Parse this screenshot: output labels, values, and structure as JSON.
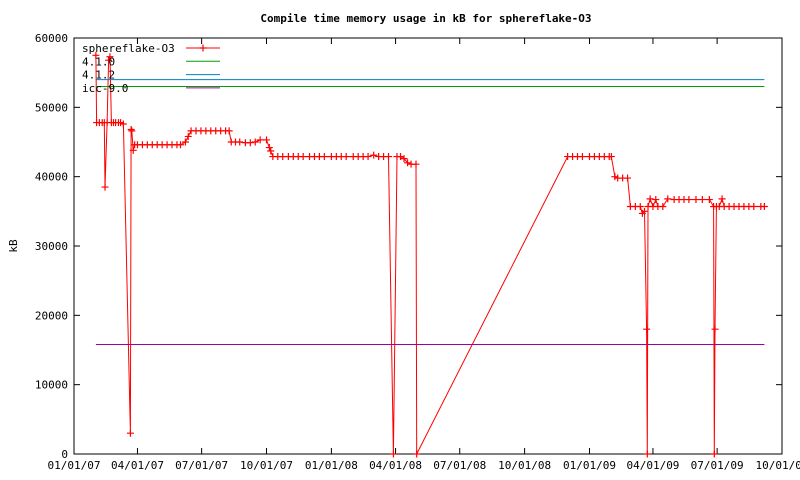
{
  "chart_data": {
    "type": "line",
    "title": "Compile time memory usage in kB for sphereflake-O3",
    "xlabel": "",
    "ylabel": "kB",
    "xlim": [
      "2007-01-01",
      "2009-10-01"
    ],
    "ylim": [
      0,
      60000
    ],
    "xticks": [
      "01/01/07",
      "04/01/07",
      "07/01/07",
      "10/01/07",
      "01/01/08",
      "04/01/08",
      "07/01/08",
      "10/01/08",
      "01/01/09",
      "04/01/09",
      "07/01/09",
      "10/01/09"
    ],
    "yticks": [
      "0",
      "10000",
      "20000",
      "30000",
      "40000",
      "50000",
      "60000"
    ],
    "grid": false,
    "legend_position": "top-left",
    "series": [
      {
        "name": "sphereflake-O3",
        "color": "#ff0000",
        "markers": true,
        "points": [
          [
            "2007-02-01",
            57500
          ],
          [
            "2007-02-02",
            47800
          ],
          [
            "2007-02-06",
            47800
          ],
          [
            "2007-02-10",
            47800
          ],
          [
            "2007-02-13",
            47800
          ],
          [
            "2007-02-14",
            38500
          ],
          [
            "2007-02-17",
            47800
          ],
          [
            "2007-02-19",
            56800
          ],
          [
            "2007-02-21",
            57300
          ],
          [
            "2007-02-23",
            47800
          ],
          [
            "2007-02-26",
            47800
          ],
          [
            "2007-03-01",
            47800
          ],
          [
            "2007-03-05",
            47800
          ],
          [
            "2007-03-08",
            47800
          ],
          [
            "2007-03-12",
            47600
          ],
          [
            "2007-03-22",
            3000
          ],
          [
            "2007-03-23",
            46800
          ],
          [
            "2007-03-24",
            46600
          ],
          [
            "2007-03-26",
            43800
          ],
          [
            "2007-03-28",
            44600
          ],
          [
            "2007-04-01",
            44600
          ],
          [
            "2007-04-08",
            44600
          ],
          [
            "2007-04-15",
            44600
          ],
          [
            "2007-04-22",
            44600
          ],
          [
            "2007-04-29",
            44600
          ],
          [
            "2007-05-06",
            44600
          ],
          [
            "2007-05-13",
            44600
          ],
          [
            "2007-05-20",
            44600
          ],
          [
            "2007-05-27",
            44600
          ],
          [
            "2007-06-01",
            44600
          ],
          [
            "2007-06-08",
            45000
          ],
          [
            "2007-06-12",
            45800
          ],
          [
            "2007-06-16",
            46600
          ],
          [
            "2007-06-23",
            46600
          ],
          [
            "2007-06-30",
            46600
          ],
          [
            "2007-07-07",
            46600
          ],
          [
            "2007-07-14",
            46600
          ],
          [
            "2007-07-21",
            46600
          ],
          [
            "2007-07-28",
            46600
          ],
          [
            "2007-08-04",
            46600
          ],
          [
            "2007-08-09",
            46600
          ],
          [
            "2007-08-12",
            45000
          ],
          [
            "2007-08-18",
            45000
          ],
          [
            "2007-08-24",
            45000
          ],
          [
            "2007-09-01",
            44900
          ],
          [
            "2007-09-08",
            44900
          ],
          [
            "2007-09-15",
            45000
          ],
          [
            "2007-09-22",
            45300
          ],
          [
            "2007-10-01",
            45300
          ],
          [
            "2007-10-05",
            44200
          ],
          [
            "2007-10-07",
            43700
          ],
          [
            "2007-10-10",
            42900
          ],
          [
            "2007-10-17",
            42900
          ],
          [
            "2007-10-24",
            42900
          ],
          [
            "2007-11-01",
            42900
          ],
          [
            "2007-11-08",
            42900
          ],
          [
            "2007-11-15",
            42900
          ],
          [
            "2007-11-22",
            42900
          ],
          [
            "2007-12-01",
            42900
          ],
          [
            "2007-12-08",
            42900
          ],
          [
            "2007-12-15",
            42900
          ],
          [
            "2007-12-22",
            42900
          ],
          [
            "2008-01-01",
            42900
          ],
          [
            "2008-01-08",
            42900
          ],
          [
            "2008-01-15",
            42900
          ],
          [
            "2008-01-22",
            42900
          ],
          [
            "2008-02-01",
            42900
          ],
          [
            "2008-02-08",
            42900
          ],
          [
            "2008-02-15",
            42900
          ],
          [
            "2008-02-22",
            42900
          ],
          [
            "2008-03-01",
            43100
          ],
          [
            "2008-03-08",
            42900
          ],
          [
            "2008-03-15",
            42900
          ],
          [
            "2008-03-22",
            42900
          ],
          [
            "2008-03-29",
            0
          ],
          [
            "2008-04-03",
            42900
          ],
          [
            "2008-04-08",
            42900
          ],
          [
            "2008-04-13",
            42600
          ],
          [
            "2008-04-18",
            42000
          ],
          [
            "2008-04-23",
            41800
          ],
          [
            "2008-04-30",
            41800
          ],
          [
            "2008-05-01",
            0
          ],
          [
            "2008-12-01",
            42900
          ],
          [
            "2008-12-08",
            42900
          ],
          [
            "2008-12-15",
            42900
          ],
          [
            "2008-12-22",
            42900
          ],
          [
            "2009-01-01",
            42900
          ],
          [
            "2009-01-08",
            42900
          ],
          [
            "2009-01-15",
            42900
          ],
          [
            "2009-01-22",
            42900
          ],
          [
            "2009-01-29",
            42900
          ],
          [
            "2009-02-01",
            42900
          ],
          [
            "2009-02-06",
            40000
          ],
          [
            "2009-02-10",
            39800
          ],
          [
            "2009-02-17",
            39800
          ],
          [
            "2009-02-24",
            39800
          ],
          [
            "2009-02-28",
            35700
          ],
          [
            "2009-03-07",
            35700
          ],
          [
            "2009-03-14",
            35700
          ],
          [
            "2009-03-17",
            34700
          ],
          [
            "2009-03-20",
            35000
          ],
          [
            "2009-03-23",
            18000
          ],
          [
            "2009-03-24",
            0
          ],
          [
            "2009-03-25",
            35700
          ],
          [
            "2009-03-28",
            36800
          ],
          [
            "2009-04-01",
            35700
          ],
          [
            "2009-04-05",
            36700
          ],
          [
            "2009-04-08",
            35700
          ],
          [
            "2009-04-15",
            35700
          ],
          [
            "2009-04-22",
            36800
          ],
          [
            "2009-05-01",
            36700
          ],
          [
            "2009-05-08",
            36700
          ],
          [
            "2009-05-15",
            36700
          ],
          [
            "2009-05-22",
            36700
          ],
          [
            "2009-06-01",
            36700
          ],
          [
            "2009-06-10",
            36700
          ],
          [
            "2009-06-20",
            36700
          ],
          [
            "2009-06-26",
            35700
          ],
          [
            "2009-06-27",
            0
          ],
          [
            "2009-06-28",
            18000
          ],
          [
            "2009-06-30",
            35700
          ],
          [
            "2009-07-04",
            35700
          ],
          [
            "2009-07-08",
            36800
          ],
          [
            "2009-07-11",
            35700
          ],
          [
            "2009-07-18",
            35700
          ],
          [
            "2009-07-25",
            35700
          ],
          [
            "2009-08-01",
            35700
          ],
          [
            "2009-08-08",
            35700
          ],
          [
            "2009-08-15",
            35700
          ],
          [
            "2009-08-22",
            35700
          ],
          [
            "2009-09-01",
            35700
          ],
          [
            "2009-09-06",
            35700
          ]
        ]
      },
      {
        "name": "4.1.0",
        "color": "#00a000",
        "markers": false,
        "points": [
          [
            "2007-02-01",
            53000
          ],
          [
            "2009-09-06",
            53000
          ]
        ]
      },
      {
        "name": "4.1.2",
        "color": "#0080c0",
        "markers": false,
        "points": [
          [
            "2007-02-01",
            54000
          ],
          [
            "2009-09-06",
            54000
          ]
        ]
      },
      {
        "name": "icc-9.0",
        "color": "#a000a0",
        "markers": false,
        "points": [
          [
            "2007-02-01",
            15800
          ],
          [
            "2009-09-06",
            15800
          ]
        ]
      }
    ]
  }
}
